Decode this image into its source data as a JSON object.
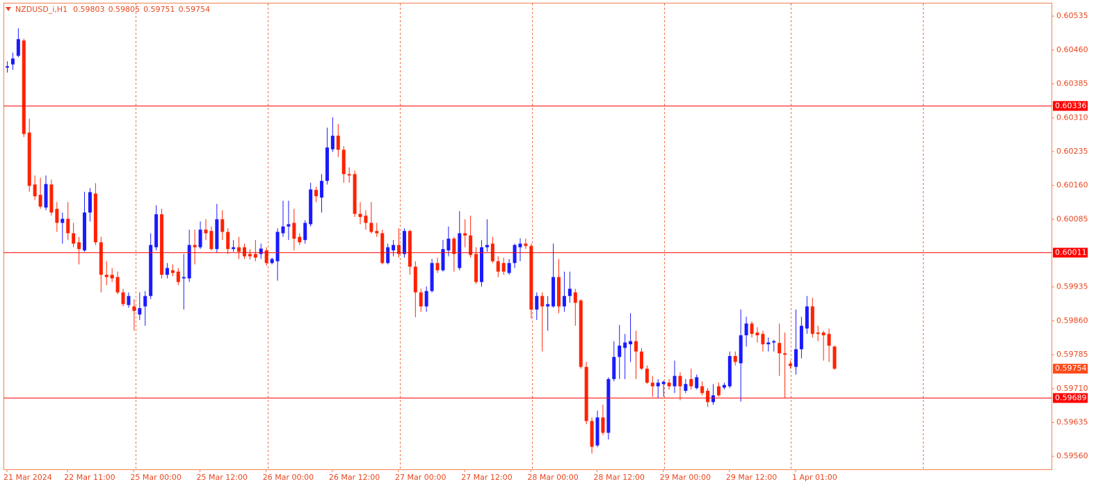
{
  "chart_data": {
    "type": "candlestick",
    "title": "NZDUSD_i,H1",
    "header_values": [
      0.59803,
      0.59805,
      0.59751,
      0.59754
    ],
    "categories": [
      "21 Mar 2024",
      null,
      null,
      null,
      null,
      null,
      null,
      null,
      null,
      null,
      null,
      "22 Mar 11:00",
      null,
      null,
      null,
      null,
      null,
      null,
      null,
      null,
      null,
      null,
      null,
      "25 Mar 00:00",
      null,
      null,
      null,
      null,
      null,
      null,
      null,
      null,
      null,
      null,
      null,
      "25 Mar 12:00",
      null,
      null,
      null,
      null,
      null,
      null,
      null,
      null,
      null,
      null,
      null,
      "26 Mar 00:00",
      null,
      null,
      null,
      null,
      null,
      null,
      null,
      null,
      null,
      null,
      null,
      "26 Mar 12:00",
      null,
      null,
      null,
      null,
      null,
      null,
      null,
      null,
      null,
      null,
      null,
      "27 Mar 00:00",
      null,
      null,
      null,
      null,
      null,
      null,
      null,
      null,
      null,
      null,
      null,
      "27 Mar 12:00",
      null,
      null,
      null,
      null,
      null,
      null,
      null,
      null,
      null,
      null,
      null,
      "28 Mar 00:00",
      null,
      null,
      null,
      null,
      null,
      null,
      null,
      null,
      null,
      null,
      null,
      "28 Mar 12:00",
      null,
      null,
      null,
      null,
      null,
      null,
      null,
      null,
      null,
      null,
      null,
      "29 Mar 00:00",
      null,
      null,
      null,
      null,
      null,
      null,
      null,
      null,
      null,
      null,
      null,
      "29 Mar 12:00",
      null,
      null,
      null,
      null,
      null,
      null,
      null,
      null,
      null,
      null,
      null,
      "1 Apr 01:00",
      null,
      null,
      null,
      null,
      null,
      null,
      null
    ],
    "open": [
      0.60421,
      0.60428,
      0.60447,
      0.60481,
      0.60277,
      0.60162,
      0.60139,
      0.60111,
      0.60162,
      0.60108,
      0.60077,
      0.60086,
      0.60054,
      0.60034,
      0.60016,
      0.601,
      0.60142,
      0.60034,
      0.59962,
      0.59962,
      0.59957,
      0.59923,
      0.59895,
      0.59892,
      0.59874,
      0.59892,
      0.59915,
      0.60023,
      0.60096,
      0.59962,
      0.59972,
      0.59969,
      0.59954,
      0.59954,
      0.60028,
      0.60023,
      0.60062,
      0.60059,
      0.60019,
      0.60085,
      0.60057,
      0.60019,
      0.60023,
      0.60023,
      0.60008,
      0.60008,
      0.60008,
      0.60016,
      0.59988,
      0.59992,
      0.60054,
      0.60069,
      0.60077,
      0.60046,
      0.60039,
      0.60074,
      0.6015,
      0.60133,
      0.6017,
      0.6024,
      0.6027,
      0.60239,
      0.60185,
      0.60185,
      0.60097,
      0.60093,
      0.60077,
      0.60059,
      0.60054,
      0.59988,
      0.60016,
      0.60028,
      0.60008,
      0.60059,
      0.5998,
      0.59923,
      0.59892,
      0.59926,
      0.59988,
      0.59972,
      0.60016,
      0.60042,
      0.59977,
      0.60054,
      0.60049,
      0.60008,
      0.59946,
      0.60023,
      0.60031,
      0.59992,
      0.59988,
      0.59966,
      0.59988,
      0.60023,
      0.60031,
      0.60026,
      0.59885,
      0.59915,
      0.59892,
      0.59892,
      0.59957,
      0.59892,
      0.59915,
      0.59923,
      0.59905,
      0.59758,
      0.59638,
      0.59584,
      0.59646,
      0.59612,
      0.59731,
      0.5978,
      0.598,
      0.59808,
      0.59815,
      0.59792,
      0.59754,
      0.59723,
      0.59715,
      0.5972,
      0.59723,
      0.59715,
      0.59738,
      0.59705,
      0.59731,
      0.59711,
      0.59715,
      0.59705,
      0.5968,
      0.59715,
      0.59712,
      0.59715,
      0.59782,
      0.59766,
      0.59828,
      0.59854,
      0.59834,
      0.59831,
      0.59808,
      0.59812,
      0.59811,
      0.59788,
      0.59765,
      0.59758,
      0.59797,
      0.59843,
      0.59892,
      0.59834,
      0.59834,
      0.59831,
      0.59803
    ],
    "high": [
      0.60435,
      0.60454,
      0.60508,
      0.60485,
      0.60308,
      0.60182,
      0.60177,
      0.60182,
      0.60173,
      0.60123,
      0.601,
      0.60123,
      0.60077,
      0.60046,
      0.60146,
      0.60154,
      0.60165,
      0.60046,
      0.59992,
      0.59977,
      0.59969,
      0.59931,
      0.59923,
      0.59908,
      0.59923,
      0.59926,
      0.60054,
      0.60116,
      0.60108,
      0.59988,
      0.59985,
      0.59977,
      0.60008,
      0.60062,
      0.60062,
      0.6008,
      0.60085,
      0.60069,
      0.60119,
      0.60105,
      0.60065,
      0.60039,
      0.60046,
      0.60031,
      0.60019,
      0.60039,
      0.60031,
      0.60023,
      0.6,
      0.60065,
      0.60126,
      0.60126,
      0.60108,
      0.60054,
      0.60083,
      0.60166,
      0.60157,
      0.60185,
      0.60288,
      0.60311,
      0.60296,
      0.60247,
      0.602,
      0.60193,
      0.60123,
      0.60105,
      0.60123,
      0.60077,
      0.60062,
      0.60031,
      0.60039,
      0.60065,
      0.60065,
      0.60062,
      0.59992,
      0.59931,
      0.59936,
      0.59997,
      0.6,
      0.60039,
      0.60069,
      0.60046,
      0.60103,
      0.60085,
      0.60093,
      0.60023,
      0.60039,
      0.60085,
      0.60046,
      0.60003,
      0.6,
      0.59997,
      0.60031,
      0.60043,
      0.60042,
      0.60031,
      0.59923,
      0.59923,
      0.59915,
      0.60031,
      0.59997,
      0.59969,
      0.59969,
      0.59931,
      0.59908,
      0.59769,
      0.59646,
      0.59661,
      0.59674,
      0.59735,
      0.59815,
      0.59851,
      0.59831,
      0.59877,
      0.59838,
      0.598,
      0.59761,
      0.59738,
      0.59731,
      0.59728,
      0.59731,
      0.59772,
      0.59746,
      0.59731,
      0.59754,
      0.59741,
      0.59726,
      0.59711,
      0.5972,
      0.59723,
      0.59723,
      0.59792,
      0.59792,
      0.59885,
      0.59869,
      0.59859,
      0.59846,
      0.59838,
      0.59823,
      0.59818,
      0.59854,
      0.59834,
      0.59772,
      0.59885,
      0.59869,
      0.59915,
      0.59911,
      0.59849,
      0.59838,
      0.59843,
      0.59805
    ],
    "low": [
      0.6041,
      0.60416,
      0.60444,
      0.60267,
      0.60146,
      0.60128,
      0.60108,
      0.60105,
      0.60093,
      0.60057,
      0.60031,
      0.60039,
      0.60023,
      0.59985,
      0.60013,
      0.6008,
      0.60028,
      0.59923,
      0.59939,
      0.59946,
      0.59919,
      0.59892,
      0.59889,
      0.59838,
      0.59862,
      0.59849,
      0.59908,
      0.60016,
      0.59954,
      0.59954,
      0.59959,
      0.59939,
      0.59885,
      0.59946,
      0.59985,
      0.60019,
      0.60039,
      0.60016,
      0.60011,
      0.60039,
      0.60008,
      0.60013,
      0.59997,
      0.59997,
      0.59996,
      0.59992,
      0.59997,
      0.59982,
      0.59985,
      0.59949,
      0.60046,
      0.60039,
      0.60016,
      0.60028,
      0.60031,
      0.60069,
      0.60123,
      0.601,
      0.60162,
      0.60234,
      0.60223,
      0.60166,
      0.60166,
      0.6009,
      0.60074,
      0.60062,
      0.60053,
      0.60046,
      0.59985,
      0.59985,
      0.60003,
      0.6,
      0.6,
      0.59962,
      0.59868,
      0.5988,
      0.5988,
      0.59923,
      0.59966,
      0.59969,
      0.60003,
      0.59969,
      0.59972,
      0.60023,
      0.6,
      0.59942,
      0.59936,
      0.60013,
      0.59988,
      0.59957,
      0.59962,
      0.59962,
      0.59977,
      0.59992,
      0.60019,
      0.59865,
      0.59862,
      0.59792,
      0.59838,
      0.59889,
      0.59877,
      0.5988,
      0.599,
      0.59849,
      0.59754,
      0.59631,
      0.59566,
      0.5958,
      0.59607,
      0.59597,
      0.59726,
      0.59731,
      0.59731,
      0.59769,
      0.59731,
      0.59751,
      0.5972,
      0.59692,
      0.59689,
      0.59692,
      0.59708,
      0.597,
      0.59684,
      0.597,
      0.59708,
      0.59708,
      0.59695,
      0.59669,
      0.59674,
      0.59692,
      0.59708,
      0.59711,
      0.59761,
      0.59681,
      0.59803,
      0.59823,
      0.59812,
      0.59792,
      0.59792,
      0.59792,
      0.59738,
      0.59689,
      0.59754,
      0.59741,
      0.59777,
      0.59831,
      0.59823,
      0.59815,
      0.59772,
      0.59769,
      0.59751
    ],
    "close": [
      0.60424,
      0.60441,
      0.60484,
      0.60274,
      0.60159,
      0.60136,
      0.60113,
      0.60163,
      0.601,
      0.60077,
      0.60086,
      0.60054,
      0.60031,
      0.60019,
      0.601,
      0.60145,
      0.60034,
      0.59962,
      0.59957,
      0.59954,
      0.59923,
      0.59897,
      0.59915,
      0.59882,
      0.59888,
      0.59915,
      0.60028,
      0.60096,
      0.59962,
      0.59977,
      0.59966,
      0.59946,
      0.59957,
      0.60028,
      0.60023,
      0.60062,
      0.60054,
      0.60019,
      0.60085,
      0.60057,
      0.60019,
      0.60023,
      0.60013,
      0.60003,
      0.60003,
      0.6,
      0.6002,
      0.59988,
      0.59997,
      0.60057,
      0.60069,
      0.60074,
      0.60042,
      0.60034,
      0.60077,
      0.60151,
      0.60136,
      0.6017,
      0.60244,
      0.6027,
      0.60239,
      0.60185,
      0.60182,
      0.60097,
      0.6009,
      0.60077,
      0.60057,
      0.60054,
      0.59988,
      0.60023,
      0.60028,
      0.60008,
      0.60059,
      0.5998,
      0.59923,
      0.59892,
      0.59926,
      0.59988,
      0.59972,
      0.60019,
      0.60042,
      0.60008,
      0.60054,
      0.60049,
      0.60006,
      0.59946,
      0.60023,
      0.60028,
      0.59992,
      0.59969,
      0.59969,
      0.59988,
      0.60028,
      0.60031,
      0.60026,
      0.59885,
      0.59915,
      0.59892,
      0.59897,
      0.59957,
      0.59892,
      0.59915,
      0.59931,
      0.599,
      0.59758,
      0.59638,
      0.59581,
      0.59646,
      0.59612,
      0.59731,
      0.5978,
      0.59805,
      0.59812,
      0.59815,
      0.59792,
      0.59754,
      0.59723,
      0.59715,
      0.59723,
      0.59725,
      0.59715,
      0.59738,
      0.59715,
      0.5972,
      0.59715,
      0.59735,
      0.597,
      0.5968,
      0.59695,
      0.59695,
      0.59718,
      0.59782,
      0.59769,
      0.59828,
      0.59854,
      0.59831,
      0.59828,
      0.59808,
      0.59812,
      0.59815,
      0.59788,
      0.59785,
      0.5976,
      0.59797,
      0.59849,
      0.59892,
      0.59831,
      0.59831,
      0.59828,
      0.59805,
      0.59754
    ],
    "up_color": "#1a1aff",
    "down_color": "#ff2200",
    "ylim": [
      0.59531,
      0.60563
    ],
    "yticks": [
      0.60535,
      {
        "value": 0.6046,
        "label": "0.60460"
      },
      0.60385,
      {
        "value": 0.6031,
        "label": "0.60310"
      },
      0.60235,
      {
        "value": 0.6016,
        "label": "0.60160"
      },
      0.60085,
      0.59935,
      {
        "value": 0.5986,
        "label": "0.59860"
      },
      0.59785,
      {
        "value": 0.5971,
        "label": "0.59710"
      },
      0.59635,
      {
        "value": 0.5956,
        "label": "0.59560"
      }
    ],
    "levels": [
      0.60336,
      0.60011,
      0.59689
    ],
    "level_color": "#ff0000",
    "current_price": 0.59754,
    "current_price_color": "#ff4a1a"
  }
}
